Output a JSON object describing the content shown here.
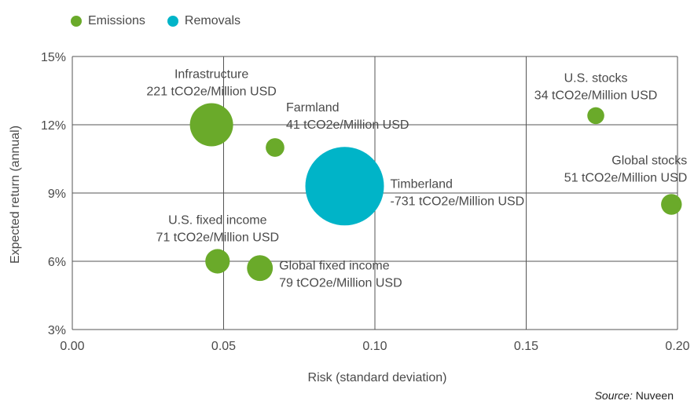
{
  "chart_data": {
    "type": "scatter",
    "subtype": "bubble",
    "xlabel": "Risk (standard deviation)",
    "ylabel": "Expected return (annual)",
    "xlim": [
      0,
      0.2
    ],
    "ylim": [
      3,
      15
    ],
    "xticks": [
      0,
      0.05,
      0.1,
      0.15,
      0.2
    ],
    "xtick_labels": [
      "0.00",
      "0.05",
      "0.10",
      "0.15",
      "0.20"
    ],
    "yticks": [
      3,
      6,
      9,
      12,
      15
    ],
    "ytick_labels": [
      "3%",
      "6%",
      "9%",
      "12%",
      "15%"
    ],
    "grid": true,
    "legend": {
      "placement": "top-left",
      "entries": [
        {
          "name": "Emissions",
          "color": "#6aaa2a"
        },
        {
          "name": "Removals",
          "color": "#00b4c8"
        }
      ]
    },
    "points": [
      {
        "name": "Infrastructure",
        "x": 0.046,
        "y": 12.0,
        "value_label": "221 tCO2e/Million USD",
        "intensity": 221,
        "series": "Emissions",
        "label_pos": "above"
      },
      {
        "name": "Farmland",
        "x": 0.067,
        "y": 11.0,
        "value_label": "41 tCO2e/Million USD",
        "intensity": 41,
        "series": "Emissions",
        "label_pos": "above-right"
      },
      {
        "name": "Timberland",
        "x": 0.09,
        "y": 9.3,
        "value_label": "-731 tCO2e/Million USD",
        "intensity": -731,
        "series": "Removals",
        "label_pos": "right"
      },
      {
        "name": "U.S. fixed income",
        "x": 0.048,
        "y": 6.0,
        "value_label": "71 tCO2e/Million USD",
        "intensity": 71,
        "series": "Emissions",
        "label_pos": "above"
      },
      {
        "name": "Global fixed income",
        "x": 0.062,
        "y": 5.7,
        "value_label": "79 tCO2e/Million USD",
        "intensity": 79,
        "series": "Emissions",
        "label_pos": "right"
      },
      {
        "name": "U.S. stocks",
        "x": 0.173,
        "y": 12.4,
        "value_label": "34 tCO2e/Million USD",
        "intensity": 34,
        "series": "Emissions",
        "label_pos": "above"
      },
      {
        "name": "Global stocks",
        "x": 0.198,
        "y": 8.5,
        "value_label": "51 tCO2e/Million USD",
        "intensity": 51,
        "series": "Emissions",
        "label_pos": "above-left"
      }
    ],
    "source_label": "Source:",
    "source_value": "Nuveen"
  }
}
